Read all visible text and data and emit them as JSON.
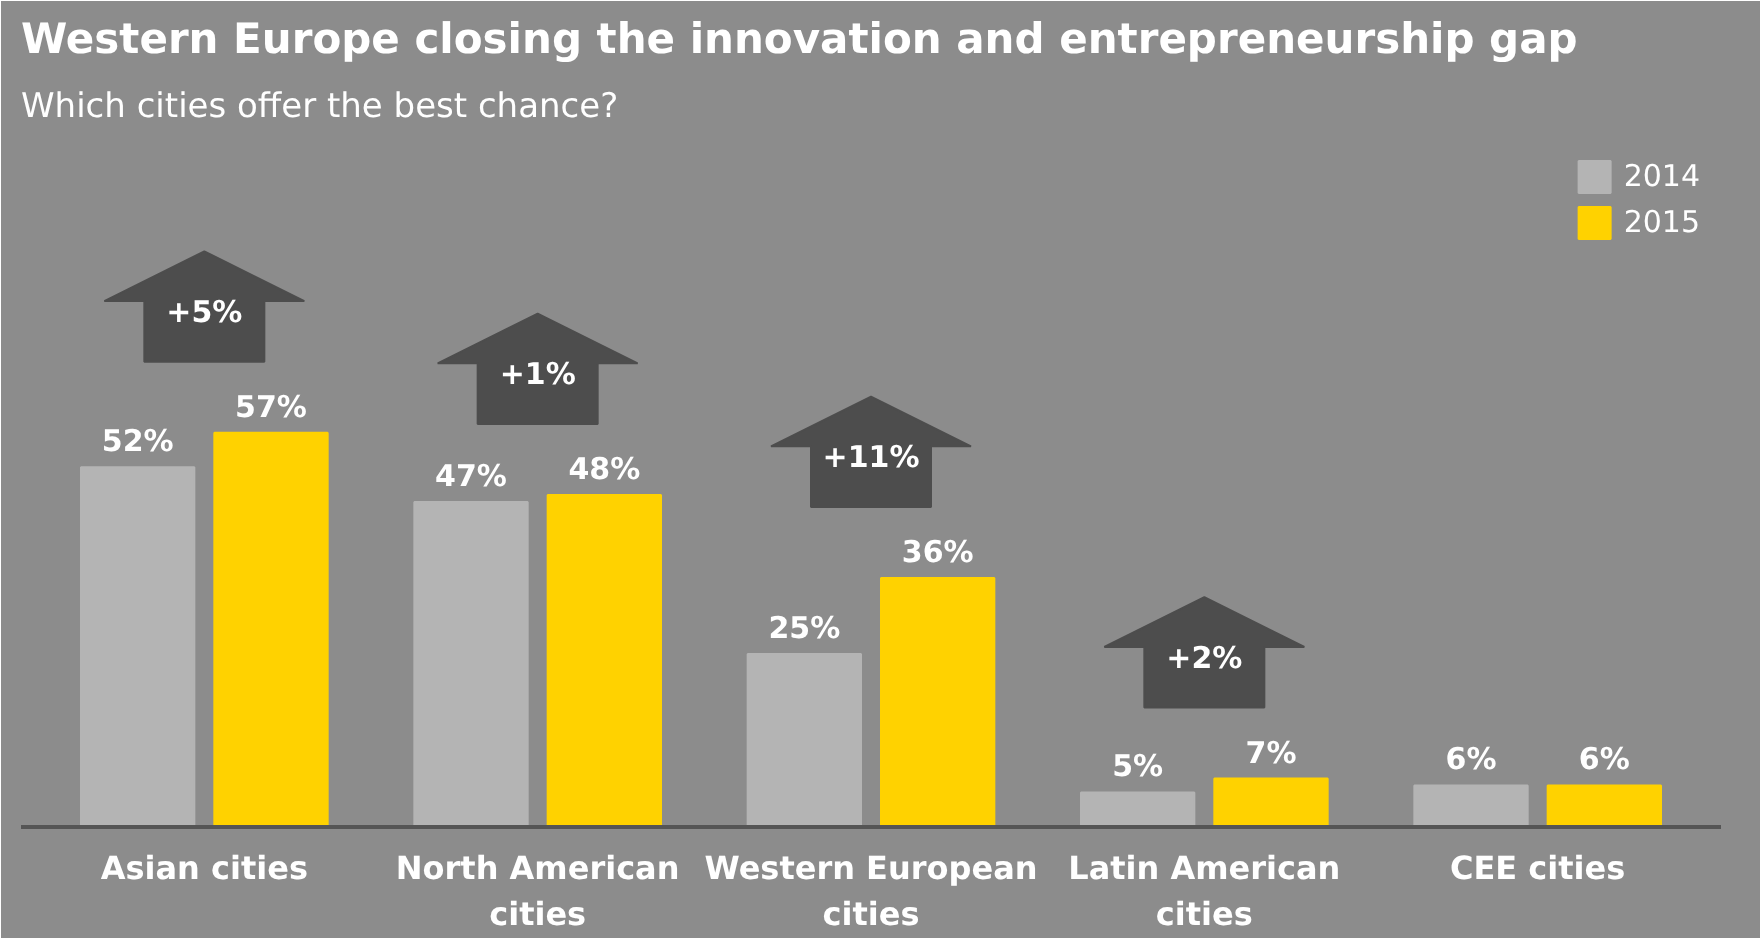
{
  "chart_data": {
    "type": "bar",
    "title": "Western Europe closing the innovation and entrepreneurship gap",
    "subtitle": "Which cities offer the best chance?",
    "categories": [
      "Asian cities",
      "North American cities",
      "Western European cities",
      "Latin American cities",
      "CEE cities"
    ],
    "series": [
      {
        "name": "2014",
        "color": "#b4b4b4",
        "values": [
          52,
          47,
          25,
          5,
          6
        ],
        "value_labels": [
          "52%",
          "47%",
          "25%",
          "5%",
          "6%"
        ]
      },
      {
        "name": "2015",
        "color": "#ffd200",
        "values": [
          57,
          48,
          36,
          7,
          6
        ],
        "value_labels": [
          "57%",
          "48%",
          "36%",
          "7%",
          "6%"
        ]
      }
    ],
    "annotations": [
      "+5%",
      "+1%",
      "+11%",
      "+2%"
    ],
    "legend": "top right"
  }
}
